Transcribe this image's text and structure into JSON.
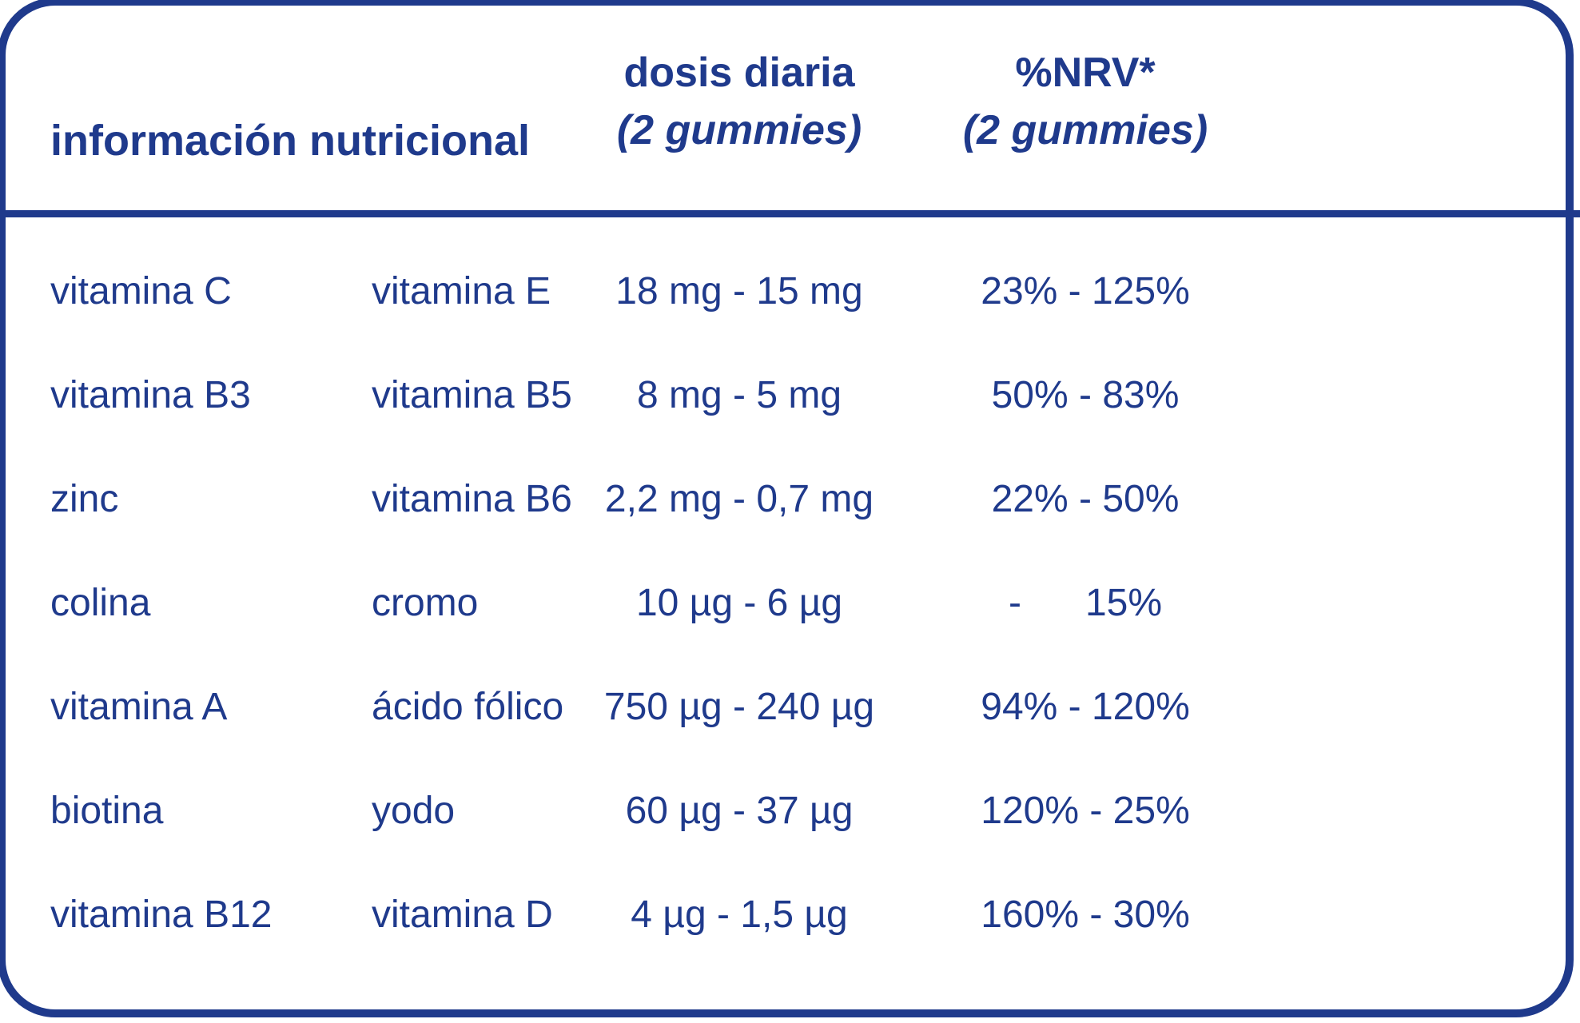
{
  "colors": {
    "primary": "#1f3a8c",
    "background": "#ffffff"
  },
  "table": {
    "header": {
      "title": "información nutricional",
      "dose_line1": "dosis diaria",
      "dose_line2": "(2 gummies)",
      "nrv_line1": "%NRV*",
      "nrv_line2": "(2 gummies)"
    },
    "rows": [
      {
        "nutrient_a": "vitamina C",
        "nutrient_b": "vitamina E",
        "dose": "18 mg - 15 mg",
        "nrv": "23% - 125%"
      },
      {
        "nutrient_a": "vitamina B3",
        "nutrient_b": "vitamina B5",
        "dose": "8 mg - 5 mg",
        "nrv": "50% - 83%"
      },
      {
        "nutrient_a": "zinc",
        "nutrient_b": "vitamina B6",
        "dose": "2,2 mg - 0,7 mg",
        "nrv": "22% - 50%"
      },
      {
        "nutrient_a": "colina",
        "nutrient_b": "cromo",
        "dose": "10 µg - 6 µg",
        "nrv": "-      15%"
      },
      {
        "nutrient_a": "vitamina A",
        "nutrient_b": "ácido fólico",
        "dose": "750 µg - 240 µg",
        "nrv": "94% - 120%"
      },
      {
        "nutrient_a": "biotina",
        "nutrient_b": "yodo",
        "dose": "60 µg - 37 µg",
        "nrv": "120% - 25%"
      },
      {
        "nutrient_a": "vitamina B12",
        "nutrient_b": "vitamina D",
        "dose": "4 µg - 1,5 µg",
        "nrv": "160% - 30%"
      }
    ]
  }
}
